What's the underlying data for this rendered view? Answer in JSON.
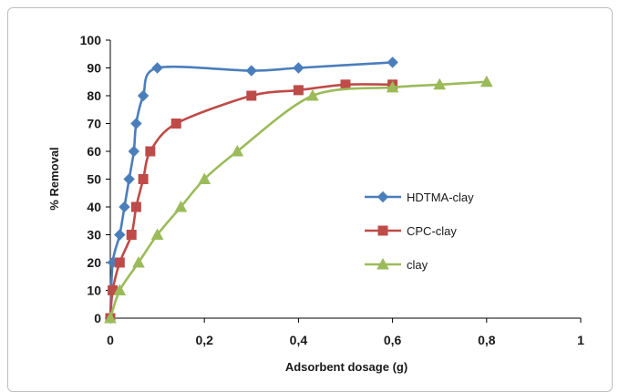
{
  "chart_data": {
    "type": "line",
    "xlabel": "Adsorbent dosage (g)",
    "ylabel": "% Removal",
    "xlim": [
      0,
      1
    ],
    "ylim": [
      0,
      100
    ],
    "x_ticks": [
      "0",
      "0,2",
      "0,4",
      "0,6",
      "0,8",
      "1"
    ],
    "y_ticks": [
      "0",
      "10",
      "20",
      "30",
      "40",
      "50",
      "60",
      "70",
      "80",
      "90",
      "100"
    ],
    "grid": false,
    "legend_position": "right",
    "series": [
      {
        "name": "HDTMA-clay",
        "color": "#4a7ebb",
        "marker": "diamond",
        "x": [
          0,
          0.005,
          0.02,
          0.03,
          0.04,
          0.05,
          0.055,
          0.07,
          0.1,
          0.3,
          0.4,
          0.6
        ],
        "y": [
          0,
          20,
          30,
          40,
          50,
          60,
          70,
          80,
          90,
          89,
          90,
          92
        ]
      },
      {
        "name": "CPC-clay",
        "color": "#be4b48",
        "marker": "square",
        "x": [
          0,
          0.005,
          0.02,
          0.045,
          0.055,
          0.07,
          0.085,
          0.14,
          0.3,
          0.4,
          0.5,
          0.6
        ],
        "y": [
          0,
          10,
          20,
          30,
          40,
          50,
          60,
          70,
          80,
          82,
          84,
          84
        ]
      },
      {
        "name": "clay",
        "color": "#9bbb59",
        "marker": "triangle",
        "x": [
          0,
          0.02,
          0.06,
          0.1,
          0.15,
          0.2,
          0.27,
          0.43,
          0.6,
          0.7,
          0.8
        ],
        "y": [
          0,
          10,
          20,
          30,
          40,
          50,
          60,
          80,
          83,
          84,
          85
        ]
      }
    ]
  }
}
